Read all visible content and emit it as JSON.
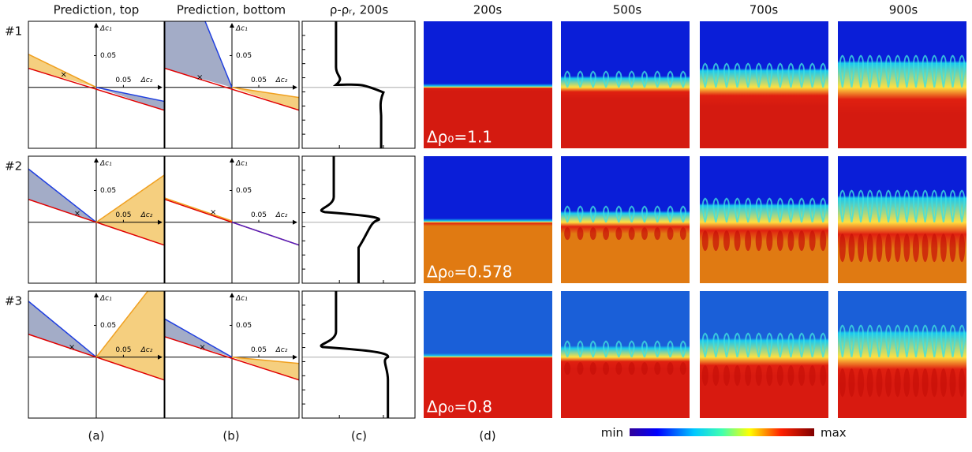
{
  "column_headers": [
    "Prediction, top",
    "Prediction, bottom",
    "ρ-ρᵣ, 200s",
    "200s",
    "500s",
    "700s",
    "900s"
  ],
  "row_labels": [
    "#1",
    "#2",
    "#3"
  ],
  "panel_labels": [
    "(a)",
    "(b)",
    "(c)",
    "(d)"
  ],
  "plot_axes": {
    "y_label": "Δc₁",
    "x_label": "Δc₂",
    "tick": "0.05"
  },
  "annotations": [
    "Δρ₀=1.1",
    "Δρ₀=0.578",
    "Δρ₀=0.8"
  ],
  "colorbar": {
    "min_label": "min",
    "max_label": "max"
  }
}
